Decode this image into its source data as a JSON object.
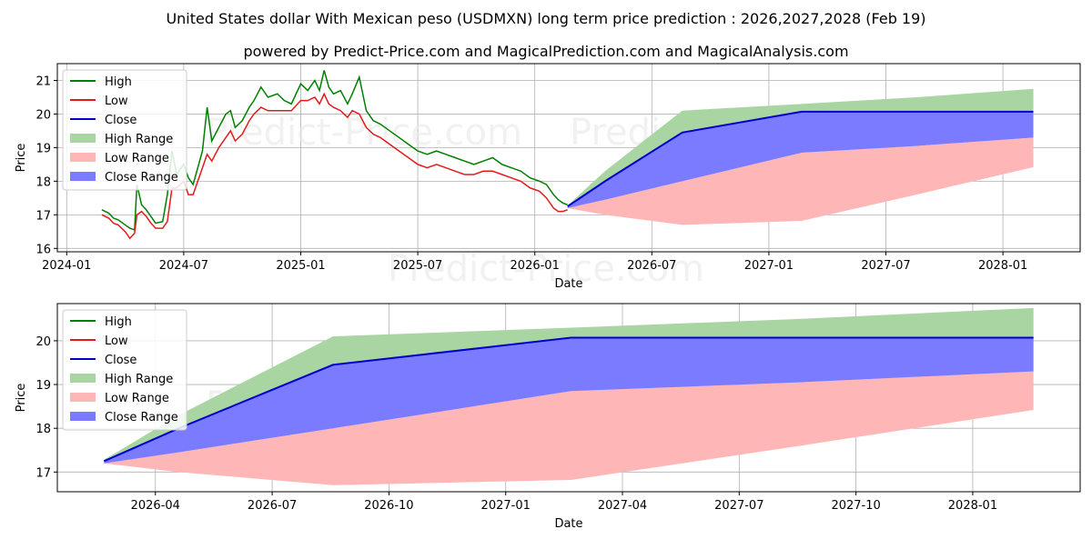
{
  "title": "United States dollar With Mexican peso (USDMXN) long term price prediction : 2026,2027,2028 (Feb 19)",
  "subtitle": "powered by Predict-Price.com and MagicalPrediction.com and MagicalAnalysis.com",
  "watermark": "Predict-Price.com",
  "colors": {
    "high": "#008000",
    "low": "#e31a1c",
    "close": "#0000cc",
    "high_range": "#a8d5a2",
    "low_range": "#ffb6b6",
    "close_range": "#7b7bff"
  },
  "legend": {
    "placement": "top-left",
    "entries": [
      "High",
      "Low",
      "Close",
      "High Range",
      "Low Range",
      "Close Range"
    ]
  },
  "chart_data": [
    {
      "type": "line",
      "name": "top-panel",
      "xlabel": "Date",
      "ylabel": "Price",
      "x_tick_labels": [
        "2024-01",
        "2024-07",
        "2025-01",
        "2025-07",
        "2026-01",
        "2026-07",
        "2027-01",
        "2027-07",
        "2028-01"
      ],
      "x_tick_dates": [
        2024.0,
        2024.5,
        2025.0,
        2025.5,
        2026.0,
        2026.5,
        2027.0,
        2027.5,
        2028.0
      ],
      "y_ticks": [
        16,
        17,
        18,
        19,
        20,
        21
      ],
      "xlim": [
        2023.96,
        2028.33
      ],
      "ylim": [
        15.9,
        21.5
      ],
      "grid": true,
      "history_dates": [
        2024.15,
        2024.18,
        2024.2,
        2024.22,
        2024.25,
        2024.27,
        2024.29,
        2024.3,
        2024.32,
        2024.34,
        2024.36,
        2024.38,
        2024.41,
        2024.43,
        2024.45,
        2024.47,
        2024.5,
        2024.52,
        2024.54,
        2024.56,
        2024.58,
        2024.6,
        2024.62,
        2024.65,
        2024.68,
        2024.7,
        2024.72,
        2024.75,
        2024.78,
        2024.8,
        2024.83,
        2024.86,
        2024.9,
        2024.93,
        2024.96,
        2025.0,
        2025.03,
        2025.06,
        2025.08,
        2025.1,
        2025.12,
        2025.14,
        2025.17,
        2025.2,
        2025.22,
        2025.25,
        2025.28,
        2025.31,
        2025.34,
        2025.38,
        2025.42,
        2025.46,
        2025.5,
        2025.54,
        2025.58,
        2025.62,
        2025.66,
        2025.7,
        2025.74,
        2025.78,
        2025.82,
        2025.86,
        2025.9,
        2025.94,
        2025.98,
        2026.02,
        2026.05,
        2026.08,
        2026.1,
        2026.12,
        2026.14
      ],
      "history_high": [
        17.15,
        17.05,
        16.9,
        16.85,
        16.7,
        16.6,
        16.55,
        17.9,
        17.3,
        17.15,
        16.95,
        16.75,
        16.8,
        17.6,
        18.9,
        18.2,
        18.5,
        18.1,
        17.9,
        18.4,
        18.9,
        20.2,
        19.2,
        19.6,
        20.0,
        20.1,
        19.6,
        19.8,
        20.2,
        20.4,
        20.8,
        20.5,
        20.6,
        20.4,
        20.3,
        20.9,
        20.7,
        21.0,
        20.7,
        21.3,
        20.8,
        20.6,
        20.7,
        20.3,
        20.6,
        21.1,
        20.1,
        19.8,
        19.7,
        19.5,
        19.3,
        19.1,
        18.9,
        18.8,
        18.9,
        18.8,
        18.7,
        18.6,
        18.5,
        18.6,
        18.7,
        18.5,
        18.4,
        18.3,
        18.1,
        18.0,
        17.9,
        17.6,
        17.45,
        17.35,
        17.3
      ],
      "history_low": [
        17.0,
        16.9,
        16.75,
        16.7,
        16.5,
        16.3,
        16.45,
        17.0,
        17.1,
        16.95,
        16.75,
        16.6,
        16.6,
        16.8,
        17.8,
        17.8,
        18.0,
        17.6,
        17.6,
        18.0,
        18.4,
        18.8,
        18.6,
        19.0,
        19.3,
        19.5,
        19.2,
        19.4,
        19.8,
        20.0,
        20.2,
        20.1,
        20.1,
        20.1,
        20.1,
        20.4,
        20.4,
        20.5,
        20.3,
        20.6,
        20.3,
        20.2,
        20.1,
        19.9,
        20.1,
        20.0,
        19.6,
        19.4,
        19.3,
        19.1,
        18.9,
        18.7,
        18.5,
        18.4,
        18.5,
        18.4,
        18.3,
        18.2,
        18.2,
        18.3,
        18.3,
        18.2,
        18.1,
        18.0,
        17.8,
        17.7,
        17.5,
        17.2,
        17.1,
        17.1,
        17.15
      ]
    },
    {
      "type": "area",
      "name": "bottom-panel",
      "xlabel": "Date",
      "ylabel": "Price",
      "x_tick_labels": [
        "2026-04",
        "2026-07",
        "2026-10",
        "2027-01",
        "2027-04",
        "2027-07",
        "2027-10",
        "2028-01"
      ],
      "x_tick_dates": [
        2026.25,
        2026.5,
        2026.75,
        2027.0,
        2027.25,
        2027.5,
        2027.75,
        2028.0
      ],
      "y_ticks": [
        17,
        18,
        19,
        20
      ],
      "xlim": [
        2026.04,
        2028.23
      ],
      "ylim": [
        16.55,
        20.85
      ],
      "grid": true,
      "forecast_dates": [
        2026.14,
        2026.3,
        2026.63,
        2027.14,
        2027.63,
        2028.13
      ],
      "close": [
        17.25,
        18.0,
        19.45,
        20.07,
        20.07,
        20.07
      ],
      "high_range_upper": [
        17.28,
        18.3,
        20.1,
        20.3,
        20.5,
        20.75
      ],
      "high_range_lower": [
        17.25,
        18.0,
        19.45,
        20.07,
        20.07,
        20.07
      ],
      "close_range_upper": [
        17.25,
        18.0,
        19.45,
        20.07,
        20.07,
        20.07
      ],
      "close_range_lower": [
        17.2,
        17.45,
        18.0,
        18.85,
        19.05,
        19.3
      ],
      "low_range_upper": [
        17.2,
        17.45,
        18.0,
        18.85,
        19.05,
        19.3
      ],
      "low_range_lower": [
        17.2,
        17.0,
        16.7,
        16.82,
        17.6,
        18.42
      ]
    }
  ]
}
